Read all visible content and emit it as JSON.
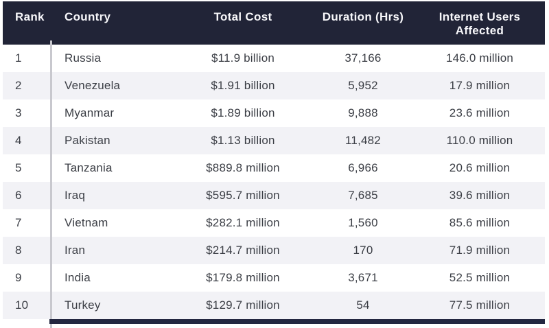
{
  "chart_data": {
    "type": "table",
    "columns": [
      {
        "key": "rank",
        "label": "Rank"
      },
      {
        "key": "country",
        "label": "Country"
      },
      {
        "key": "total_cost",
        "label": "Total Cost"
      },
      {
        "key": "duration_hrs",
        "label": "Duration (Hrs)"
      },
      {
        "key": "users",
        "label": "Internet Users Affected"
      }
    ],
    "rows": [
      {
        "rank": "1",
        "country": "Russia",
        "total_cost": "$11.9 billion",
        "duration_hrs": "37,166",
        "users": "146.0 million"
      },
      {
        "rank": "2",
        "country": "Venezuela",
        "total_cost": "$1.91 billion",
        "duration_hrs": "5,952",
        "users": "17.9 million"
      },
      {
        "rank": "3",
        "country": "Myanmar",
        "total_cost": "$1.89 billion",
        "duration_hrs": "9,888",
        "users": "23.6 million"
      },
      {
        "rank": "4",
        "country": "Pakistan",
        "total_cost": "$1.13 billion",
        "duration_hrs": "11,482",
        "users": "110.0 million"
      },
      {
        "rank": "5",
        "country": "Tanzania",
        "total_cost": "$889.8 million",
        "duration_hrs": "6,966",
        "users": "20.6 million"
      },
      {
        "rank": "6",
        "country": "Iraq",
        "total_cost": "$595.7 million",
        "duration_hrs": "7,685",
        "users": "39.6 million"
      },
      {
        "rank": "7",
        "country": "Vietnam",
        "total_cost": "$282.1 million",
        "duration_hrs": "1,560",
        "users": "85.6 million"
      },
      {
        "rank": "8",
        "country": "Iran",
        "total_cost": "$214.7 million",
        "duration_hrs": "170",
        "users": "71.9 million"
      },
      {
        "rank": "9",
        "country": "India",
        "total_cost": "$179.8 million",
        "duration_hrs": "3,671",
        "users": "52.5 million"
      },
      {
        "rank": "10",
        "country": "Turkey",
        "total_cost": "$129.7 million",
        "duration_hrs": "54",
        "users": "77.5 million"
      }
    ],
    "layout": {
      "alternating_row_shading": true,
      "shaded_rows": "even",
      "rank_column_divider": true
    }
  },
  "colors": {
    "header_bg": "#212437",
    "header_text": "#f7f7fa",
    "row_alt_bg": "#f2f2f6",
    "row_text": "#3b3e45",
    "rank_divider": "#c8c8ce",
    "bottom_strip": "#232740",
    "page_bg": "#ffffff"
  }
}
